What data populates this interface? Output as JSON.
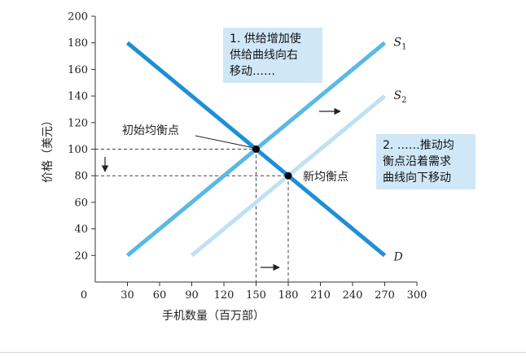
{
  "chart_data": {
    "type": "line",
    "xlabel": "手机数量（百万部）",
    "ylabel": "价格（美元）",
    "xlim": [
      0,
      300
    ],
    "ylim": [
      0,
      200
    ],
    "x_ticks": [
      0,
      30,
      60,
      90,
      120,
      150,
      180,
      210,
      240,
      270,
      300
    ],
    "y_ticks": [
      20,
      40,
      60,
      80,
      100,
      120,
      140,
      160,
      180,
      200
    ],
    "grid": false,
    "series": [
      {
        "name": "D",
        "x": [
          30,
          270
        ],
        "y": [
          180,
          20
        ],
        "color": "#1e8fd6"
      },
      {
        "name": "S1",
        "x": [
          30,
          270
        ],
        "y": [
          20,
          180
        ],
        "color": "#5ab8e6"
      },
      {
        "name": "S2",
        "x": [
          90,
          270
        ],
        "y": [
          20,
          140
        ],
        "color": "#bfe1f4"
      }
    ],
    "curve_labels": [
      {
        "series": "S1",
        "base": "S",
        "sub": "1"
      },
      {
        "series": "S2",
        "base": "S",
        "sub": "2"
      },
      {
        "series": "D",
        "base": "D",
        "sub": ""
      }
    ],
    "points": [
      {
        "x": 150,
        "y": 100,
        "label": "初始均衡点"
      },
      {
        "x": 180,
        "y": 80,
        "label": "新均衡点"
      }
    ],
    "annotations": [
      {
        "lines": [
          "1. 供给增加使",
          "供给曲线向右",
          "移动……"
        ]
      },
      {
        "lines": [
          "2. ……推动均",
          "衡点沿着需求",
          "曲线向下移动"
        ]
      }
    ]
  }
}
